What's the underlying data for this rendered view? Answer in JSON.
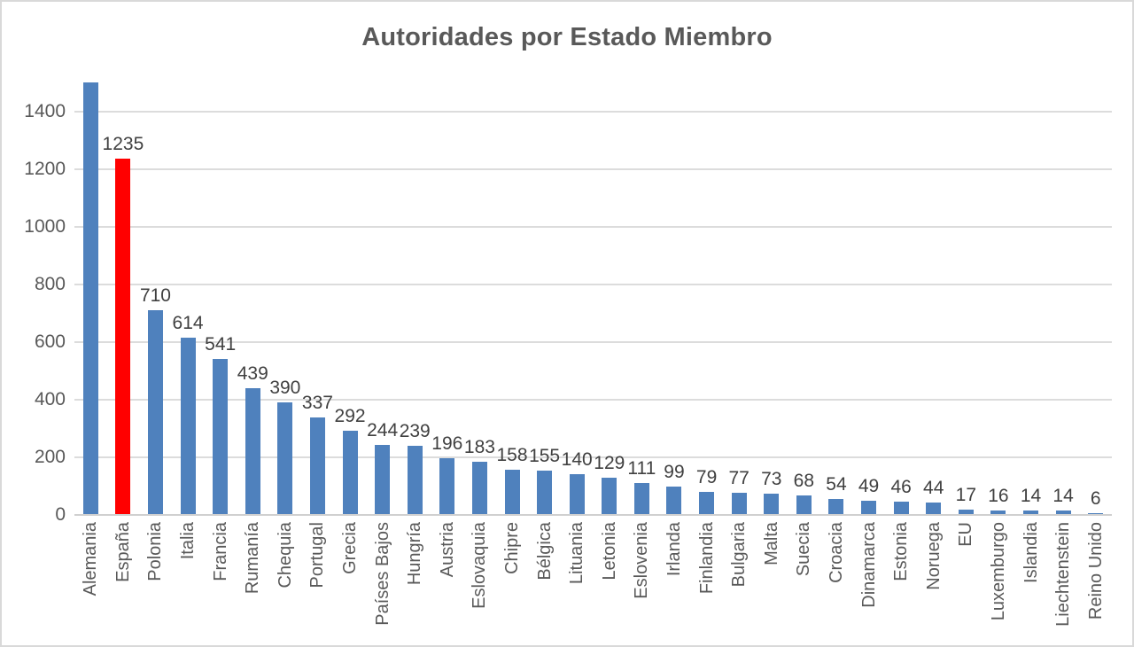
{
  "chart_data": {
    "type": "bar",
    "title": "Autoridades por Estado Miembro",
    "categories": [
      "Alemania",
      "España",
      "Polonia",
      "Italia",
      "Francia",
      "Rumanía",
      "Chequia",
      "Portugal",
      "Grecia",
      "Países Bajos",
      "Hungría",
      "Austria",
      "Eslovaquia",
      "Chipre",
      "Bélgica",
      "Lituania",
      "Letonia",
      "Eslovenia",
      "Irlanda",
      "Finlandia",
      "Bulgaria",
      "Malta",
      "Suecia",
      "Croacia",
      "Dinamarca",
      "Estonia",
      "Noruega",
      "EU",
      "Luxemburgo",
      "Islandia",
      "Liechtenstein",
      "Reino Unido"
    ],
    "values": [
      1500,
      1235,
      710,
      614,
      541,
      439,
      390,
      337,
      292,
      244,
      239,
      196,
      183,
      158,
      155,
      140,
      129,
      111,
      99,
      79,
      77,
      73,
      68,
      54,
      49,
      46,
      44,
      17,
      16,
      14,
      14,
      6
    ],
    "data_labels": [
      "",
      "1235",
      "710",
      "614",
      "541",
      "439",
      "390",
      "337",
      "292",
      "244",
      "239",
      "196",
      "183",
      "158",
      "155",
      "140",
      "129",
      "111",
      "99",
      "79",
      "77",
      "73",
      "68",
      "54",
      "49",
      "46",
      "44",
      "17",
      "16",
      "14",
      "14",
      "6"
    ],
    "highlight_index": 1,
    "xlabel": "",
    "ylabel": "",
    "ylim": [
      0,
      1500
    ],
    "yticks": [
      0,
      200,
      400,
      600,
      800,
      1000,
      1200,
      1400
    ],
    "grid": true,
    "legend": "none",
    "colors": {
      "bar_default": "#4f81bd",
      "bar_highlight": "#ff0000",
      "title_text": "#595959",
      "axis_text": "#595959",
      "data_label_text": "#404040",
      "gridline": "#dcdcdc",
      "axis_line": "#d0d0d0",
      "background": "#ffffff",
      "frame_border": "#d9d9d9"
    }
  }
}
